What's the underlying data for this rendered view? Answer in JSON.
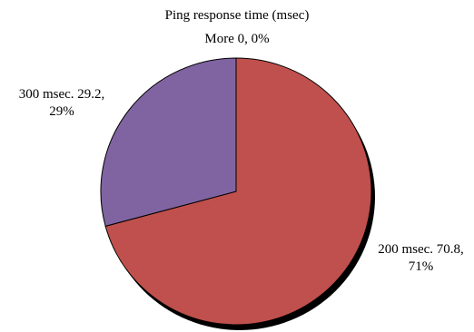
{
  "chart_data": {
    "type": "pie",
    "title": "Ping response time (msec)",
    "slices": [
      {
        "name": "200 msec.",
        "value": 70.8,
        "percent": "71%",
        "label_line1": "200 msec. 70.8,",
        "label_line2": "71%",
        "color": "#c0504d"
      },
      {
        "name": "300 msec.",
        "value": 29.2,
        "percent": "29%",
        "label_line1": "300 msec. 29.2,",
        "label_line2": "29%",
        "color": "#8064a2"
      },
      {
        "name": "More",
        "value": 0,
        "percent": "0%",
        "label": "More 0, 0%",
        "color": "#4f81bd"
      }
    ]
  }
}
